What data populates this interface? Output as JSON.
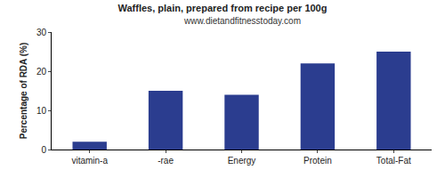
{
  "chart_data": {
    "type": "bar",
    "title": "Waffles, plain, prepared from recipe per 100g",
    "subtitle": "www.dietandfitnesstoday.com",
    "y_label": "Percentage of RDA (%)",
    "categories": [
      "vitamin-a",
      "-rae",
      "Energy",
      "Protein",
      "Total-Fat"
    ],
    "values": [
      2,
      15,
      14,
      22,
      25
    ],
    "color": "#2b3d8f",
    "ylim": [
      0,
      30
    ],
    "yticks": [
      0,
      10,
      20,
      30
    ],
    "grid": false
  }
}
